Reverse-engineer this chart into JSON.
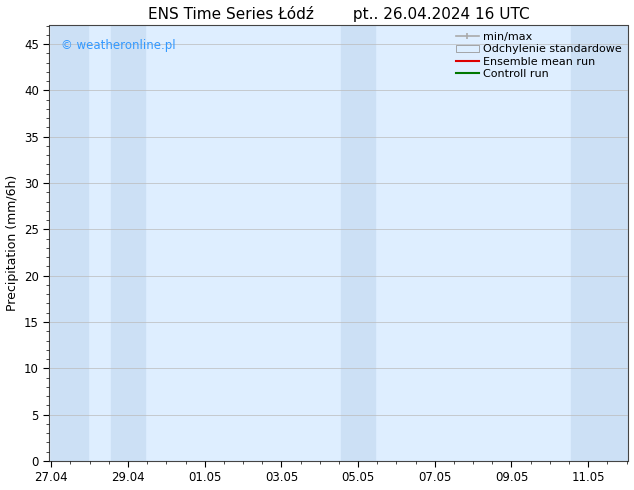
{
  "title": "ENS Time Series Łódź        pt.. 26.04.2024 16 UTC",
  "ylabel": "Precipitation (mm/6h)",
  "xlabel": "",
  "ylim": [
    0,
    47
  ],
  "yticks": [
    0,
    5,
    10,
    15,
    20,
    25,
    30,
    35,
    40,
    45
  ],
  "xtick_labels": [
    "27.04",
    "29.04",
    "01.05",
    "03.05",
    "05.05",
    "07.05",
    "09.05",
    "11.05"
  ],
  "xtick_positions": [
    0,
    2,
    4,
    6,
    8,
    10,
    12,
    14
  ],
  "xlim": [
    -0.05,
    15.05
  ],
  "background_color": "#ffffff",
  "plot_bg_color": "#deeeff",
  "watermark_text": "© weatheronline.pl",
  "watermark_color": "#3399ff",
  "shaded_bands": [
    {
      "x_start": 0.0,
      "x_end": 0.95,
      "color": "#cce0f5"
    },
    {
      "x_start": 1.55,
      "x_end": 2.45,
      "color": "#cce0f5"
    },
    {
      "x_start": 7.55,
      "x_end": 8.45,
      "color": "#cce0f5"
    },
    {
      "x_start": 13.55,
      "x_end": 15.05,
      "color": "#cce0f5"
    }
  ],
  "legend_entries": [
    {
      "label": "min/max",
      "color": "#aaaaaa",
      "type": "errorbar"
    },
    {
      "label": "Odchylenie standardowe",
      "color": "#ddeeff",
      "type": "band"
    },
    {
      "label": "Ensemble mean run",
      "color": "#dd0000",
      "type": "line"
    },
    {
      "label": "Controll run",
      "color": "#007700",
      "type": "line"
    }
  ],
  "title_fontsize": 11,
  "axis_label_fontsize": 9,
  "tick_fontsize": 8.5,
  "legend_fontsize": 8
}
